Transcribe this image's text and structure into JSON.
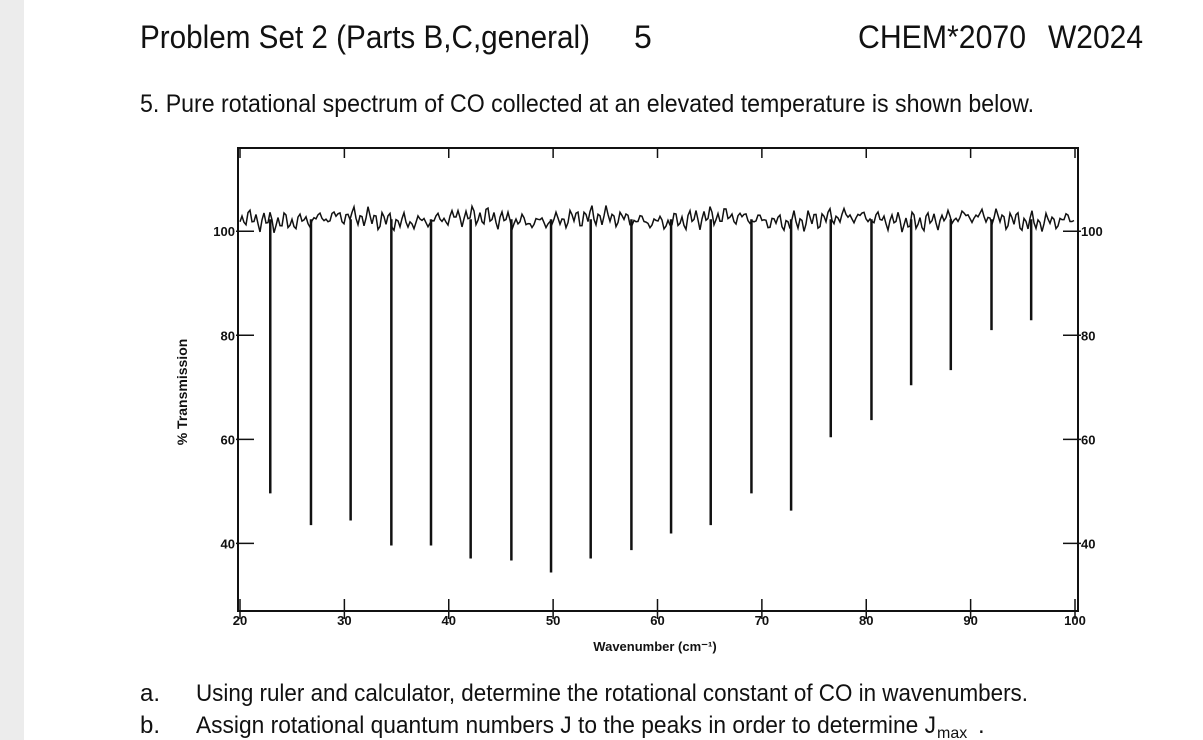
{
  "header": {
    "title": "Problem Set 2 (Parts B,C,general)",
    "page": "5",
    "course": "CHEM*2070",
    "term": "W2024"
  },
  "question": "5. Pure rotational spectrum of CO collected at an elevated temperature is shown below.",
  "chart_data": {
    "type": "spectrum",
    "xlabel": "Wavenumber (cm⁻¹)",
    "ylabel": "% Transmission",
    "x": [
      22.9,
      26.8,
      30.6,
      34.5,
      38.3,
      42.1,
      46.0,
      49.8,
      53.6,
      57.5,
      61.3,
      65.1,
      69.0,
      72.8,
      76.6,
      80.5,
      84.3,
      88.1,
      92.0,
      95.8
    ],
    "values": [
      49.6,
      43.5,
      44.4,
      39.6,
      39.6,
      37.1,
      36.7,
      34.4,
      37.1,
      38.7,
      41.9,
      43.5,
      49.6,
      46.3,
      60.4,
      63.7,
      70.4,
      73.3,
      81.0,
      82.9
    ],
    "color": "#111111",
    "xlim": [
      20,
      100
    ],
    "xticks": [
      20,
      30,
      40,
      50,
      60,
      70,
      80,
      90,
      100
    ],
    "ylim": [
      27,
      116
    ],
    "yticks": [
      100,
      80,
      60,
      40
    ]
  },
  "parts": [
    {
      "label": "a.",
      "text": "Using ruler and calculator, determine the rotational constant of CO in wavenumbers."
    },
    {
      "label": "b.",
      "text": "Assign rotational quantum numbers J to the peaks in order to determine J",
      "subscript": "max",
      "tail": "."
    }
  ]
}
